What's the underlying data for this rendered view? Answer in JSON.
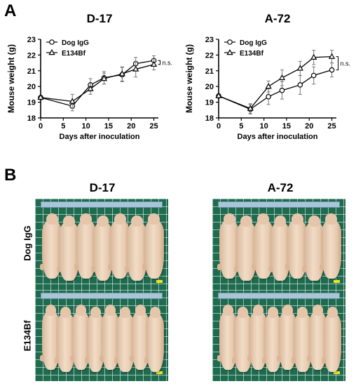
{
  "panels": {
    "a": "A",
    "b": "B"
  },
  "chart_data": [
    {
      "type": "line",
      "title": "D-17",
      "xlabel": "Days after inoculation",
      "ylabel": "Mouse weight (g)",
      "xlim": [
        0,
        26
      ],
      "ylim": [
        18,
        23
      ],
      "xticks": [
        0,
        5,
        10,
        15,
        20,
        25
      ],
      "yticks": [
        18,
        19,
        20,
        21,
        22,
        23
      ],
      "legend_position": "top-left",
      "annotation": "n.s.",
      "x": [
        0,
        7,
        11,
        14,
        18,
        21,
        25
      ],
      "series": [
        {
          "name": "Dog IgG",
          "marker": "circle",
          "values": [
            19.3,
            18.75,
            20.1,
            20.55,
            20.75,
            21.45,
            21.65
          ],
          "errors": [
            0.0,
            0.3,
            0.4,
            0.4,
            0.45,
            0.4,
            0.3
          ]
        },
        {
          "name": "E134Bf",
          "marker": "triangle",
          "values": [
            19.3,
            19.05,
            19.85,
            20.5,
            20.8,
            21.1,
            21.4
          ],
          "errors": [
            0.0,
            0.45,
            0.35,
            0.35,
            0.45,
            0.5,
            0.35
          ]
        }
      ]
    },
    {
      "type": "line",
      "title": "A-72",
      "xlabel": "Days after inoculation",
      "ylabel": "Mouse weight (g)",
      "xlim": [
        0,
        26
      ],
      "ylim": [
        18,
        23
      ],
      "xticks": [
        0,
        5,
        10,
        15,
        20,
        25
      ],
      "yticks": [
        18,
        19,
        20,
        21,
        22,
        23
      ],
      "legend_position": "top-left",
      "annotation": "n.s.",
      "x": [
        0,
        7,
        11,
        14,
        18,
        21,
        25
      ],
      "series": [
        {
          "name": "Dog IgG",
          "marker": "circle",
          "values": [
            19.4,
            18.55,
            19.35,
            19.75,
            20.1,
            20.7,
            21.05
          ],
          "errors": [
            0.0,
            0.3,
            0.5,
            0.55,
            0.6,
            0.55,
            0.45
          ]
        },
        {
          "name": "E134Bf",
          "marker": "triangle",
          "values": [
            19.4,
            18.6,
            20.0,
            20.55,
            21.15,
            21.85,
            21.9
          ],
          "errors": [
            0.0,
            0.3,
            0.35,
            0.5,
            0.45,
            0.45,
            0.4
          ]
        }
      ]
    }
  ],
  "photos": {
    "column_titles": [
      "D-17",
      "A-72"
    ],
    "row_labels": [
      "Dog IgG",
      "E134Bf"
    ],
    "mice_per_group": [
      7,
      7,
      8,
      8
    ]
  }
}
